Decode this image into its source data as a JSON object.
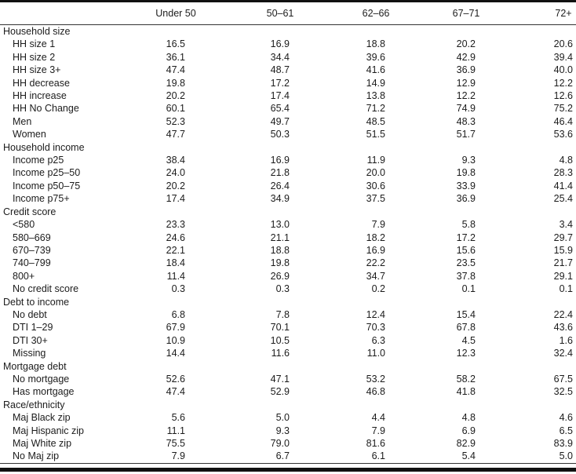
{
  "colors": {
    "text": "#1c1c1c",
    "rule": "#111111",
    "background": "#ffffff"
  },
  "table": {
    "columns": [
      "",
      "Under 50",
      "50–61",
      "62–66",
      "67–71",
      "72+"
    ],
    "groups": [
      {
        "label": "Household size",
        "rows": [
          {
            "label": "HH size 1",
            "values": [
              "16.5",
              "16.9",
              "18.8",
              "20.2",
              "20.6"
            ]
          },
          {
            "label": "HH size 2",
            "values": [
              "36.1",
              "34.4",
              "39.6",
              "42.9",
              "39.4"
            ]
          },
          {
            "label": "HH size 3+",
            "values": [
              "47.4",
              "48.7",
              "41.6",
              "36.9",
              "40.0"
            ]
          },
          {
            "label": "HH decrease",
            "values": [
              "19.8",
              "17.2",
              "14.9",
              "12.9",
              "12.2"
            ]
          },
          {
            "label": "HH increase",
            "values": [
              "20.2",
              "17.4",
              "13.8",
              "12.2",
              "12.6"
            ]
          },
          {
            "label": "HH No Change",
            "values": [
              "60.1",
              "65.4",
              "71.2",
              "74.9",
              "75.2"
            ]
          },
          {
            "label": "Men",
            "values": [
              "52.3",
              "49.7",
              "48.5",
              "48.3",
              "46.4"
            ]
          },
          {
            "label": "Women",
            "values": [
              "47.7",
              "50.3",
              "51.5",
              "51.7",
              "53.6"
            ]
          }
        ]
      },
      {
        "label": "Household income",
        "rows": [
          {
            "label": "Income p25",
            "values": [
              "38.4",
              "16.9",
              "11.9",
              "9.3",
              "4.8"
            ]
          },
          {
            "label": "Income p25–50",
            "values": [
              "24.0",
              "21.8",
              "20.0",
              "19.8",
              "28.3"
            ]
          },
          {
            "label": "Income p50–75",
            "values": [
              "20.2",
              "26.4",
              "30.6",
              "33.9",
              "41.4"
            ]
          },
          {
            "label": "Income p75+",
            "values": [
              "17.4",
              "34.9",
              "37.5",
              "36.9",
              "25.4"
            ]
          }
        ]
      },
      {
        "label": "Credit score",
        "rows": [
          {
            "label": "<580",
            "values": [
              "23.3",
              "13.0",
              "7.9",
              "5.8",
              "3.4"
            ]
          },
          {
            "label": "580–669",
            "values": [
              "24.6",
              "21.1",
              "18.2",
              "17.2",
              "29.7"
            ]
          },
          {
            "label": "670–739",
            "values": [
              "22.1",
              "18.8",
              "16.9",
              "15.6",
              "15.9"
            ]
          },
          {
            "label": "740–799",
            "values": [
              "18.4",
              "19.8",
              "22.2",
              "23.5",
              "21.7"
            ]
          },
          {
            "label": "800+",
            "values": [
              "11.4",
              "26.9",
              "34.7",
              "37.8",
              "29.1"
            ]
          },
          {
            "label": "No credit score",
            "values": [
              "0.3",
              "0.3",
              "0.2",
              "0.1",
              "0.1"
            ]
          }
        ]
      },
      {
        "label": "Debt to income",
        "rows": [
          {
            "label": "No debt",
            "values": [
              "6.8",
              "7.8",
              "12.4",
              "15.4",
              "22.4"
            ]
          },
          {
            "label": "DTI 1–29",
            "values": [
              "67.9",
              "70.1",
              "70.3",
              "67.8",
              "43.6"
            ]
          },
          {
            "label": "DTI 30+",
            "values": [
              "10.9",
              "10.5",
              "6.3",
              "4.5",
              "1.6"
            ]
          },
          {
            "label": "Missing",
            "values": [
              "14.4",
              "11.6",
              "11.0",
              "12.3",
              "32.4"
            ]
          }
        ]
      },
      {
        "label": "Mortgage debt",
        "rows": [
          {
            "label": "No mortgage",
            "values": [
              "52.6",
              "47.1",
              "53.2",
              "58.2",
              "67.5"
            ]
          },
          {
            "label": "Has mortgage",
            "values": [
              "47.4",
              "52.9",
              "46.8",
              "41.8",
              "32.5"
            ]
          }
        ]
      },
      {
        "label": "Race/ethnicity",
        "rows": [
          {
            "label": "Maj Black zip",
            "values": [
              "5.6",
              "5.0",
              "4.4",
              "4.8",
              "4.6"
            ]
          },
          {
            "label": "Maj Hispanic zip",
            "values": [
              "11.1",
              "9.3",
              "7.9",
              "6.9",
              "6.5"
            ]
          },
          {
            "label": "Maj White zip",
            "values": [
              "75.5",
              "79.0",
              "81.6",
              "82.9",
              "83.9"
            ]
          },
          {
            "label": "No Maj zip",
            "values": [
              "7.9",
              "6.7",
              "6.1",
              "5.4",
              "5.0"
            ]
          }
        ]
      }
    ]
  }
}
